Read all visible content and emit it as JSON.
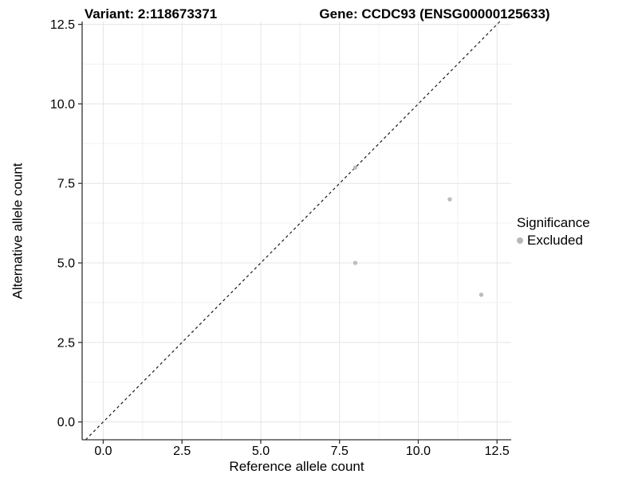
{
  "chart_data": {
    "type": "scatter",
    "title_left": "Variant: 2:118673371",
    "title_right": "Gene: CCDC93 (ENSG00000125633)",
    "xlabel": "Reference allele count",
    "ylabel": "Alternative allele count",
    "xlim": [
      -0.67,
      12.95
    ],
    "ylim": [
      -0.56,
      12.59
    ],
    "x_ticks": {
      "values": [
        0,
        2.5,
        5,
        7.5,
        10,
        12.5
      ],
      "labels": [
        "0.0",
        "2.5",
        "5.0",
        "7.5",
        "10.0",
        "12.5"
      ]
    },
    "y_ticks": {
      "values": [
        0,
        2.5,
        5,
        7.5,
        10,
        12.5
      ],
      "labels": [
        "0.0",
        "2.5",
        "5.0",
        "7.5",
        "10.0",
        "12.5"
      ]
    },
    "grid": "major and minor gridlines on",
    "reference_line": {
      "type": "identity y=x",
      "style": "dashed",
      "color": "#1a1a1a"
    },
    "series": [
      {
        "name": "Excluded",
        "color": "#bdbdbd",
        "points": [
          {
            "x": 8,
            "y": 5
          },
          {
            "x": 8,
            "y": 8
          },
          {
            "x": 11,
            "y": 7
          },
          {
            "x": 12,
            "y": 4
          }
        ]
      }
    ],
    "legend": {
      "title": "Significance",
      "position": "right",
      "items": [
        {
          "label": "Excluded",
          "color": "#b8b8b8"
        }
      ]
    },
    "colors": {
      "point": "#bdbdbd",
      "grid_major": "#e5e5e5",
      "grid_minor": "#f2f2f2",
      "axis_line": "#333333",
      "text": "#000000",
      "background": "#ffffff"
    }
  }
}
